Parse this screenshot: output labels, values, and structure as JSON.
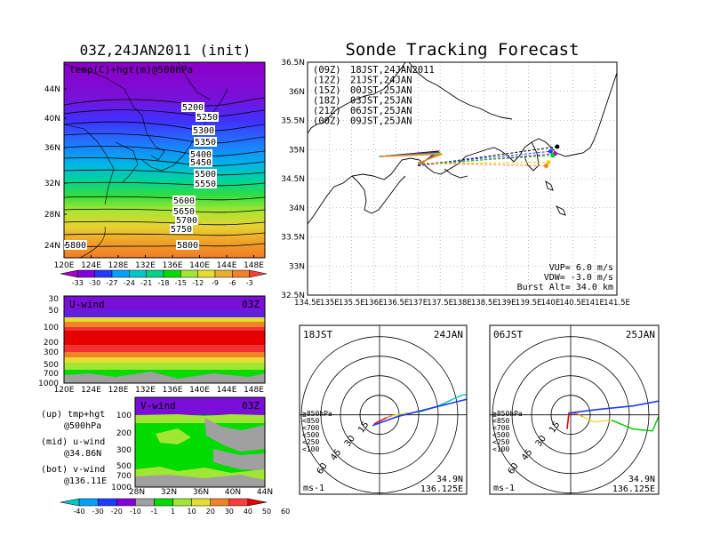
{
  "left_title": "03Z,24JAN2011 (init)",
  "right_title": "Sonde Tracking Forecast",
  "top_panel": {
    "label": "temp(C)+hgt(m)@500hPa",
    "lat_ticks": [
      "44N",
      "40N",
      "36N",
      "32N",
      "28N",
      "24N"
    ],
    "lon_ticks": [
      "120E",
      "124E",
      "128E",
      "132E",
      "136E",
      "140E",
      "144E",
      "148E"
    ],
    "contours": [
      "5200",
      "5250",
      "5300",
      "5350",
      "5400",
      "5450",
      "5500",
      "5550",
      "5600",
      "5650",
      "5700",
      "5750",
      "5800",
      "5800"
    ],
    "colorbar_ticks": [
      "-33",
      "-30",
      "-27",
      "-24",
      "-21",
      "-18",
      "-15",
      "-12",
      "-9",
      "-6",
      "-3"
    ]
  },
  "u_panel": {
    "label": "U-wind",
    "time": "03Z",
    "p_ticks": [
      "30",
      "50",
      "100",
      "200",
      "300",
      "500",
      "700",
      "1000"
    ],
    "lon_ticks": [
      "120E",
      "124E",
      "128E",
      "132E",
      "136E",
      "140E",
      "144E",
      "148E"
    ]
  },
  "v_panel": {
    "label": "V-wind",
    "time": "03Z",
    "p_ticks": [
      "100",
      "200",
      "300",
      "500",
      "700",
      "1000"
    ],
    "lat_ticks": [
      "28N",
      "32N",
      "36N",
      "40N",
      "44N"
    ],
    "colorbar_ticks": [
      "-40",
      "-30",
      "-20",
      "-10",
      "-1",
      "1",
      "10",
      "20",
      "30",
      "40",
      "50",
      "60"
    ]
  },
  "legend_notes": [
    {
      "a": "(up) tmp+hgt",
      "b": "@500hPa"
    },
    {
      "a": "(mid) u-wind",
      "b": "@34.86N"
    },
    {
      "a": "(bot) v-wind",
      "b": "@136.11E"
    }
  ],
  "track_map": {
    "lat_ticks": [
      "36.5N",
      "36N",
      "35.5N",
      "35N",
      "34.5N",
      "34N",
      "33.5N",
      "33N",
      "32.5N"
    ],
    "lon_ticks": [
      "134.5E",
      "135E",
      "135.5E",
      "136E",
      "136.5E",
      "137E",
      "137.5E",
      "138E",
      "138.5E",
      "139E",
      "139.5E",
      "140E",
      "140.5E",
      "141E",
      "141.5E"
    ],
    "legend": [
      {
        "code": "(09Z)",
        "text": "18JST,24JAN2011",
        "color": "#000000"
      },
      {
        "code": "(12Z)",
        "text": "21JST,24JAN",
        "color": "#a000c8"
      },
      {
        "code": "(15Z)",
        "text": "00JST,25JAN",
        "color": "#1e3cff"
      },
      {
        "code": "(18Z)",
        "text": "03JST,25JAN",
        "color": "#00c800"
      },
      {
        "code": "(21Z)",
        "text": "06JST,25JAN",
        "color": "#f0d000"
      },
      {
        "code": "(00Z)",
        "text": "09JST,25JAN",
        "color": "#f08228"
      }
    ],
    "params": [
      "VUP= 6.0 m/s",
      "VDW= -3.0 m/s",
      "Burst Alt= 34.0 km"
    ]
  },
  "hodographs": [
    {
      "left": "18JST",
      "right": "24JAN",
      "lat": "34.9N",
      "lon": "136.125E",
      "unit": "ms-1",
      "rings": [
        "15",
        "30",
        "45",
        "60"
      ]
    },
    {
      "left": "06JST",
      "right": "25JAN",
      "lat": "34.9N",
      "lon": "136.125E",
      "unit": "ms-1",
      "rings": [
        "15",
        "30",
        "45",
        "60"
      ]
    }
  ],
  "hodo_levels": [
    {
      "label": "≧850hPa",
      "color": "#e60000"
    },
    {
      "label": "<850",
      "color": "#f08228"
    },
    {
      "label": "<700",
      "color": "#e6dc32"
    },
    {
      "label": "<500",
      "color": "#00c800"
    },
    {
      "label": "<250",
      "color": "#00c8c8"
    },
    {
      "label": "<100",
      "color": "#1e3cff"
    }
  ],
  "colors": {
    "temp_bands": [
      "#a000c8",
      "#8200dc",
      "#1e3cff",
      "#00a0ff",
      "#00c8c8",
      "#00d28c",
      "#00dc00",
      "#a0e632",
      "#e6dc32",
      "#e6af2d",
      "#f08228",
      "#fa3c3c"
    ],
    "wind_bands": [
      "#00c8c8",
      "#00a0ff",
      "#1e3cff",
      "#8200dc",
      "#a0a0a0",
      "#00dc00",
      "#a0e632",
      "#e6dc32",
      "#f08228",
      "#fa3c3c",
      "#e60000"
    ]
  }
}
